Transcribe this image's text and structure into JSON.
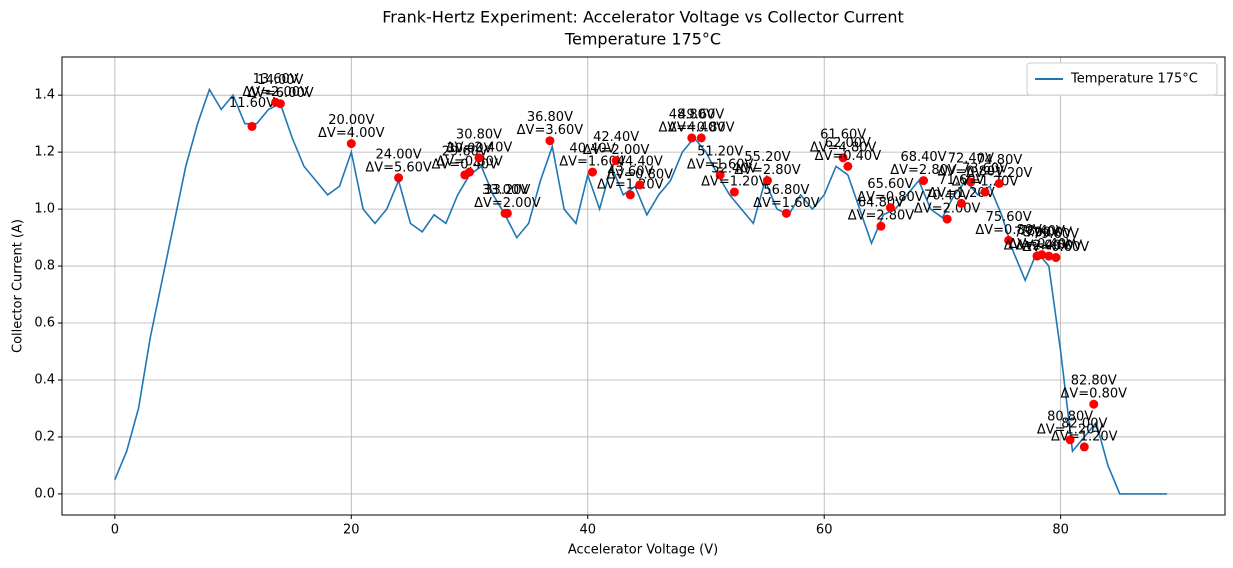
{
  "chart_data": {
    "type": "line",
    "title": "Frank-Hertz Experiment: Accelerator Voltage vs Collector Current",
    "subtitle": "Temperature 175°C",
    "x_label": "Accelerator Voltage (V)",
    "y_label": "Collector Current (A)",
    "xlim": [
      -4.47,
      93.9
    ],
    "ylim": [
      -0.074,
      1.534
    ],
    "xticks": [
      0,
      20,
      40,
      60,
      80
    ],
    "yticks": [
      {
        "value": 0,
        "label": "0.0"
      },
      {
        "value": 0.2,
        "label": "0.2"
      },
      {
        "value": 0.4,
        "label": "0.4"
      },
      {
        "value": 0.6,
        "label": "0.6"
      },
      {
        "value": 0.8,
        "label": "0.8"
      },
      {
        "value": 1.0,
        "label": "1.0"
      },
      {
        "value": 1.2,
        "label": "1.2"
      },
      {
        "value": 1.4,
        "label": "1.4"
      }
    ],
    "grid": true,
    "legend": "upper right",
    "x": [
      0,
      1,
      2,
      3,
      4,
      5,
      6,
      7,
      8,
      9,
      10,
      11,
      12,
      13,
      14,
      15,
      16,
      17,
      18,
      19,
      20,
      21,
      22,
      23,
      24,
      25,
      26,
      27,
      28,
      29,
      30,
      31,
      32,
      33,
      34,
      35,
      36,
      37,
      38,
      39,
      40,
      41,
      42,
      43,
      44,
      45,
      46,
      47,
      48,
      49,
      50,
      51,
      52,
      53,
      54,
      55,
      56,
      57,
      58,
      59,
      60,
      61,
      62,
      63,
      64,
      65,
      66,
      67,
      68,
      69,
      70,
      71,
      72,
      73,
      74,
      75,
      76,
      77,
      78,
      79,
      80,
      81,
      82,
      83,
      84,
      85,
      86,
      87,
      88,
      89
    ],
    "series": [
      {
        "name": "Temperature 175°C",
        "color": "#1f77b4",
        "values": [
          0.05,
          0.15,
          0.3,
          0.55,
          0.75,
          0.95,
          1.15,
          1.3,
          1.42,
          1.35,
          1.4,
          1.3,
          1.3,
          1.35,
          1.37,
          1.25,
          1.15,
          1.1,
          1.05,
          1.08,
          1.2,
          1.0,
          0.95,
          1.0,
          1.1,
          0.95,
          0.92,
          0.98,
          0.95,
          1.05,
          1.12,
          1.15,
          1.05,
          0.98,
          0.9,
          0.95,
          1.1,
          1.22,
          1.0,
          0.95,
          1.12,
          1.0,
          1.15,
          1.05,
          1.08,
          0.98,
          1.05,
          1.1,
          1.2,
          1.25,
          1.2,
          1.12,
          1.05,
          1.0,
          0.95,
          1.1,
          1.0,
          0.98,
          1.05,
          1.0,
          1.05,
          1.15,
          1.12,
          1.0,
          0.88,
          0.98,
          1.0,
          1.05,
          1.1,
          1.0,
          0.97,
          1.05,
          1.1,
          1.05,
          1.08,
          0.98,
          0.85,
          0.75,
          0.85,
          0.8,
          0.5,
          0.15,
          0.2,
          0.25,
          0.1,
          0,
          0,
          0,
          0,
          0
        ]
      }
    ],
    "peaks": {
      "color": "#ff0000",
      "label_color": "#0000ff",
      "x": [
        11.6,
        13.6,
        14.0,
        20.0,
        24.0,
        29.6,
        30.0,
        30.8,
        33.0,
        33.2,
        36.8,
        40.4,
        42.4,
        43.6,
        44.4,
        48.8,
        49.6,
        51.2,
        52.4,
        55.2,
        56.8,
        61.6,
        62.0,
        64.8,
        65.6,
        68.4,
        70.4,
        71.6,
        72.4,
        73.6,
        74.8,
        75.6,
        78.0,
        78.4,
        79.0,
        79.6,
        80.8,
        82.0,
        82.8
      ],
      "value_labels": [
        "11.60V",
        "13.60V",
        "14.00V",
        "20.00V",
        "24.00V",
        "29.60V",
        "30.00V",
        "30.80V",
        "33.00V",
        "33.20V",
        "36.80V",
        "40.40V",
        "42.40V",
        "43.60V",
        "44.40V",
        "48.80V",
        "49.60V",
        "51.20V",
        "52.40V",
        "55.20V",
        "56.80V",
        "61.60V",
        "62.00V",
        "64.80V",
        "65.60V",
        "68.40V",
        "70.40V",
        "71.60V",
        "72.40V",
        "73.60V",
        "74.80V",
        "75.60V",
        "78.00V",
        "78.40V",
        "79.00V",
        "79.60V",
        "80.80V",
        "82.00V",
        "82.80V"
      ],
      "values": [
        1.29,
        1.375,
        1.37,
        1.23,
        1.11,
        1.12,
        1.13,
        1.18,
        0.985,
        0.985,
        1.24,
        1.13,
        1.17,
        1.05,
        1.085,
        1.25,
        1.25,
        1.12,
        1.06,
        1.1,
        0.985,
        1.18,
        1.15,
        0.94,
        1.005,
        1.1,
        0.965,
        1.02,
        1.095,
        1.06,
        1.09,
        0.89,
        0.835,
        0.84,
        0.835,
        0.83,
        0.19,
        0.165,
        0.315
      ],
      "delta_labels": [
        null,
        "ΔV=2.00V",
        "ΔV=6.00V",
        "ΔV=4.00V",
        "ΔV=5.60V",
        "ΔV=0.40V",
        "ΔV=0.80V",
        "ΔV=2.40V",
        null,
        "ΔV=2.00V",
        "ΔV=3.60V",
        "ΔV=1.60V",
        "ΔV=2.00V",
        "ΔV=1.20V",
        "ΔV=0.80V",
        "ΔV=4.40V",
        "ΔV=0.80V",
        "ΔV=1.60V",
        "ΔV=1.20V",
        "ΔV=2.80V",
        "ΔV=1.60V",
        "ΔV=4.80V",
        "ΔV=0.40V",
        "ΔV=2.80V",
        "ΔV=0.80V",
        "ΔV=2.80V",
        "ΔV=2.00V",
        "ΔV=1.20V",
        "ΔV=0.80V",
        "ΔV=1.20V",
        "ΔV=1.20V",
        "ΔV=0.80V",
        "ΔV=2.40V",
        "ΔV=0.40V",
        "ΔV=0.60V",
        "ΔV=0.60V",
        "ΔV=1.20V",
        "ΔV=1.20V",
        "ΔV=0.80V"
      ]
    }
  }
}
